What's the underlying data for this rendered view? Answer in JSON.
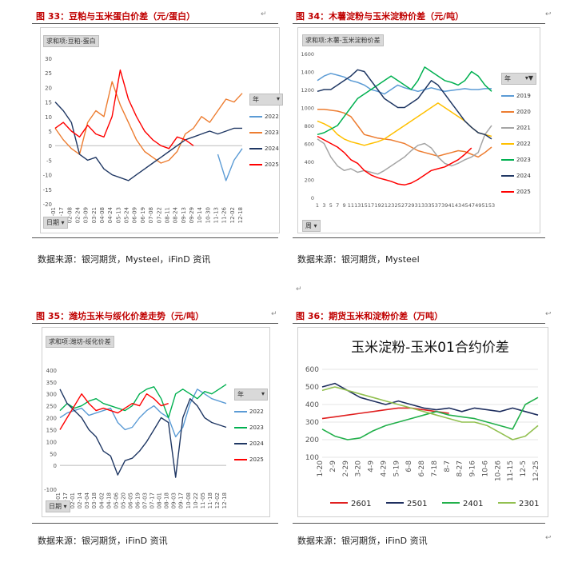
{
  "page_marks": {
    "return": "↵",
    "anchor": "↩"
  },
  "fig33": {
    "title": "图 33：豆粕与玉米蛋白价差（元/蛋白）",
    "pill": "求和项:豆粕-蛋白",
    "source": "数据来源：银河期货，Mysteel，iFinD 资讯",
    "filter": "日期 ▾",
    "legend_title": "年",
    "legend_caret": "▾"
  },
  "fig34": {
    "title": "图 34：木薯淀粉与玉米淀粉价差（元/吨）",
    "pill": "求和项:木薯-玉米淀粉价差",
    "source": "数据来源：银河期货，Mysteel",
    "filter": "周 ▾",
    "legend_title": "年",
    "legend_caret": "▾▼"
  },
  "fig35": {
    "title": "图 35：潍坊玉米与绥化价差走势（元/吨）",
    "pill": "求和项:潍坊-绥化价差",
    "source": "数据来源：银河期货，iFinD 资讯",
    "filter": "日期 ▾",
    "legend_title": "年",
    "legend_caret": "▾"
  },
  "fig36": {
    "title": "图 36：期货玉米和淀粉价差（万吨）",
    "source": "数据来源：银河期货，iFinD 资讯"
  },
  "colors": {
    "2019": "#5b9bd5",
    "2020": "#ed7d31",
    "2021": "#a5a5a5",
    "2022": "#ffc000",
    "2023": "#00b050",
    "2024": "#203864",
    "2025": "#ff0000",
    "c2601": "#e02020",
    "c2501": "#1f2f5f",
    "c2401": "#22b04b",
    "c2301": "#92c050"
  },
  "chart_data": [
    {
      "id": "fig33",
      "type": "line",
      "title": "豆粕与玉米蛋白价差",
      "ylim": [
        -20,
        30
      ],
      "yticks": [
        -20,
        -15,
        -10,
        -5,
        0,
        5,
        10,
        15,
        20,
        25,
        30
      ],
      "xlabels": [
        "01-01",
        "01-17",
        "02-08",
        "02-24",
        "03-09",
        "03-21",
        "04-08",
        "04-24",
        "05-13",
        "05-24",
        "06-09",
        "06-19",
        "07-08",
        "07-22",
        "08-11",
        "08-24",
        "09-13",
        "09-29",
        "10-14",
        "10-30",
        "11-13",
        "11-26",
        "12-02",
        "12-18"
      ],
      "legend": [
        "2022",
        "2023",
        "2024",
        "2025"
      ],
      "series": [
        {
          "name": "2022",
          "color": "#5b9bd5",
          "values": [
            null,
            null,
            null,
            null,
            null,
            null,
            null,
            null,
            null,
            null,
            null,
            null,
            null,
            null,
            null,
            null,
            null,
            null,
            null,
            null,
            -3,
            -12,
            -5,
            -1
          ]
        },
        {
          "name": "2023",
          "color": "#ed7d31",
          "values": [
            6,
            2,
            -1,
            -3,
            8,
            12,
            10,
            22,
            14,
            8,
            2,
            -2,
            -4,
            -6,
            -5,
            -2,
            4,
            6,
            10,
            8,
            12,
            16,
            15,
            18
          ]
        },
        {
          "name": "2024",
          "color": "#203864",
          "values": [
            15,
            12,
            8,
            -3,
            -5,
            -4,
            -8,
            -10,
            -11,
            -12,
            -10,
            -8,
            -6,
            -4,
            -2,
            0,
            2,
            3,
            4,
            5,
            4,
            5,
            6,
            6
          ]
        },
        {
          "name": "2025",
          "color": "#ff0000",
          "values": [
            6,
            8,
            5,
            3,
            7,
            4,
            3,
            10,
            26,
            16,
            10,
            5,
            2,
            0,
            -1,
            3,
            2,
            0,
            null,
            null,
            null,
            null,
            null,
            null
          ]
        }
      ]
    },
    {
      "id": "fig34",
      "type": "line",
      "title": "木薯淀粉与玉米淀粉价差",
      "ylim": [
        0,
        1600
      ],
      "yticks": [
        0,
        200,
        400,
        600,
        800,
        1000,
        1200,
        1400,
        1600
      ],
      "xlabels": [
        "1",
        "3",
        "5",
        "7",
        "9",
        "11",
        "13",
        "15",
        "17",
        "19",
        "21",
        "23",
        "25",
        "27",
        "29",
        "31",
        "33",
        "35",
        "37",
        "39",
        "41",
        "43",
        "45",
        "47",
        "49",
        "51",
        "53"
      ],
      "legend": [
        "2019",
        "2020",
        "2021",
        "2022",
        "2023",
        "2024",
        "2025"
      ],
      "series": [
        {
          "name": "2019",
          "color": "#5b9bd5",
          "values": [
            1300,
            1350,
            1380,
            1360,
            1340,
            1300,
            1280,
            1250,
            1200,
            1180,
            1150,
            1200,
            1250,
            1220,
            1200,
            1180,
            1200,
            1220,
            1200,
            1180,
            1190,
            1200,
            1210,
            1200,
            1200,
            1210,
            1210
          ]
        },
        {
          "name": "2020",
          "color": "#ed7d31",
          "values": [
            980,
            980,
            970,
            960,
            940,
            900,
            800,
            700,
            680,
            660,
            650,
            640,
            620,
            600,
            560,
            520,
            500,
            480,
            460,
            480,
            500,
            520,
            510,
            480,
            450,
            500,
            560
          ]
        },
        {
          "name": "2021",
          "color": "#a5a5a5",
          "values": [
            650,
            600,
            450,
            350,
            300,
            320,
            280,
            300,
            280,
            260,
            300,
            350,
            400,
            450,
            520,
            580,
            600,
            550,
            450,
            380,
            350,
            380,
            420,
            450,
            500,
            700,
            800
          ]
        },
        {
          "name": "2022",
          "color": "#ffc000",
          "values": [
            850,
            820,
            780,
            700,
            650,
            620,
            600,
            580,
            600,
            620,
            650,
            700,
            750,
            800,
            850,
            900,
            950,
            1000,
            1050,
            1000,
            950,
            900,
            850,
            780,
            720,
            700,
            680
          ]
        },
        {
          "name": "2023",
          "color": "#00b050",
          "values": [
            700,
            720,
            760,
            800,
            900,
            1000,
            1100,
            1150,
            1200,
            1250,
            1300,
            1350,
            1300,
            1250,
            1200,
            1300,
            1450,
            1400,
            1350,
            1300,
            1280,
            1250,
            1300,
            1400,
            1350,
            1250,
            1180
          ]
        },
        {
          "name": "2024",
          "color": "#203864",
          "values": [
            1180,
            1200,
            1200,
            1250,
            1300,
            1350,
            1420,
            1400,
            1300,
            1200,
            1100,
            1050,
            1000,
            1000,
            1050,
            1100,
            1200,
            1300,
            1250,
            1150,
            1050,
            950,
            850,
            780,
            720,
            700,
            650
          ]
        },
        {
          "name": "2025",
          "color": "#ff0000",
          "values": [
            680,
            640,
            600,
            560,
            500,
            420,
            380,
            300,
            250,
            220,
            200,
            180,
            150,
            140,
            160,
            200,
            250,
            300,
            320,
            340,
            380,
            420,
            480,
            550,
            null,
            null,
            null
          ]
        }
      ]
    },
    {
      "id": "fig35",
      "type": "line",
      "title": "潍坊玉米与绥化价差走势",
      "ylim": [
        -100,
        450
      ],
      "yticks": [
        -100,
        0,
        50,
        100,
        150,
        200,
        250,
        300,
        350,
        400
      ],
      "ytick_labels": [
        "-100",
        "0",
        "50",
        "100",
        "150",
        "200",
        "250",
        "300",
        "350",
        "400"
      ],
      "xlabels": [
        "01-01",
        "01-17",
        "02-01",
        "02-14",
        "03-04",
        "03-18",
        "04-02",
        "04-18",
        "05-06",
        "05-20",
        "06-05",
        "06-19",
        "07-03",
        "07-17",
        "08-01",
        "08-18",
        "09-03",
        "09-17",
        "10-08",
        "10-22",
        "11-05",
        "11-18",
        "12-02",
        "12-18"
      ],
      "legend": [
        "2022",
        "2023",
        "2024",
        "2025"
      ],
      "series": [
        {
          "name": "2022",
          "color": "#5b9bd5",
          "values": [
            200,
            220,
            230,
            240,
            210,
            220,
            230,
            240,
            180,
            150,
            160,
            200,
            230,
            250,
            220,
            200,
            120,
            160,
            260,
            320,
            300,
            280,
            270,
            260
          ]
        },
        {
          "name": "2023",
          "color": "#00b050",
          "values": [
            230,
            260,
            240,
            250,
            270,
            280,
            260,
            250,
            240,
            230,
            250,
            300,
            320,
            330,
            280,
            200,
            300,
            320,
            300,
            280,
            310,
            300,
            320,
            340
          ]
        },
        {
          "name": "2024",
          "color": "#203864",
          "values": [
            320,
            260,
            230,
            200,
            150,
            120,
            60,
            40,
            -40,
            20,
            30,
            60,
            100,
            150,
            200,
            180,
            -50,
            200,
            280,
            250,
            200,
            180,
            170,
            160
          ]
        },
        {
          "name": "2025",
          "color": "#ff0000",
          "values": [
            150,
            200,
            250,
            300,
            260,
            230,
            240,
            230,
            220,
            240,
            260,
            250,
            300,
            280,
            250,
            260,
            null,
            null,
            null,
            null,
            null,
            null,
            null,
            null
          ]
        }
      ]
    },
    {
      "id": "fig36",
      "type": "line",
      "title": "玉米淀粉-玉米01合约价差",
      "ylim": [
        100,
        600
      ],
      "yticks": [
        100,
        200,
        300,
        400,
        500,
        600
      ],
      "xlabels": [
        "1-20",
        "2-9",
        "2-29",
        "3-20",
        "4-9",
        "4-29",
        "5-19",
        "6-8",
        "6-28",
        "7-18",
        "8-7",
        "8-27",
        "9-16",
        "10-6",
        "10-26",
        "11-15",
        "12-5",
        "12-25"
      ],
      "legend": [
        "2601",
        "2501",
        "2401",
        "2301"
      ],
      "series": [
        {
          "name": "2601",
          "color": "#e02020",
          "values": [
            320,
            330,
            340,
            350,
            360,
            370,
            380,
            380,
            370,
            360,
            350,
            null,
            null,
            null,
            null,
            null,
            null,
            null
          ]
        },
        {
          "name": "2501",
          "color": "#1f2f5f",
          "values": [
            500,
            520,
            480,
            440,
            420,
            400,
            420,
            400,
            380,
            370,
            380,
            360,
            380,
            370,
            360,
            380,
            360,
            340
          ]
        },
        {
          "name": "2401",
          "color": "#22b04b",
          "values": [
            260,
            220,
            200,
            210,
            250,
            280,
            300,
            320,
            340,
            360,
            340,
            330,
            320,
            300,
            280,
            260,
            400,
            440
          ]
        },
        {
          "name": "2301",
          "color": "#92c050",
          "values": [
            480,
            500,
            480,
            460,
            440,
            420,
            400,
            380,
            360,
            340,
            320,
            300,
            300,
            280,
            240,
            200,
            220,
            280
          ]
        }
      ]
    }
  ]
}
